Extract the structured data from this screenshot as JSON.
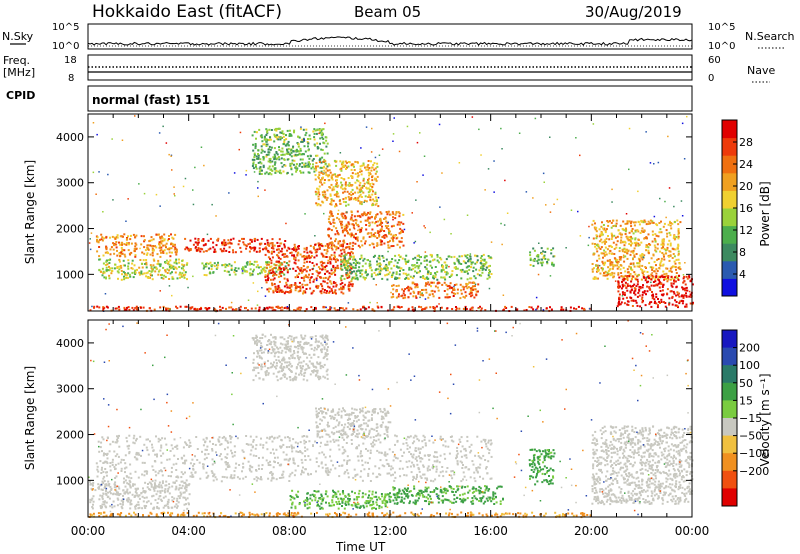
{
  "header": {
    "station": "Hokkaido East (fitACF)",
    "beam": "Beam 05",
    "date": "30/Aug/2019"
  },
  "top_panel": {
    "left_label": "N.Sky",
    "left_ticks": [
      "10^5",
      "10^0"
    ],
    "right_ticks": [
      "10^5",
      "10^0"
    ],
    "right_label": "N.Search"
  },
  "freq_panel": {
    "left_label_1": "Freq.",
    "left_label_2": "[MHz]",
    "left_ticks": [
      "18",
      "8"
    ],
    "right_ticks": [
      "60",
      "0"
    ],
    "right_label": "Nave"
  },
  "cpid_panel": {
    "left_label": "CPID",
    "mode_text": "normal (fast) 151"
  },
  "colors": {
    "power": [
      "#1010e0",
      "#2a5ab0",
      "#3c8a60",
      "#4cae4c",
      "#9ad23a",
      "#f0d030",
      "#f0a020",
      "#f07010",
      "#ee3a0a",
      "#e00000"
    ],
    "velocity": [
      "#1818c0",
      "#2a4ab0",
      "#2a7a68",
      "#3ca044",
      "#7acc40",
      "#c8c8c0",
      "#f0c040",
      "#f09020",
      "#f05010",
      "#e00000"
    ]
  },
  "chart_data": [
    {
      "type": "heatmap",
      "name": "power",
      "ylabel": "Slant Range [km]",
      "yticks": [
        1000,
        2000,
        3000,
        4000
      ],
      "ylim": [
        200,
        4500
      ],
      "xticks": [
        "00:00",
        "04:00",
        "08:00",
        "12:00",
        "16:00",
        "20:00",
        "00:00"
      ],
      "xlim_hours": [
        0,
        24
      ],
      "colorbar": {
        "label": "Power [dB]",
        "ticks": [
          4,
          8,
          12,
          16,
          20,
          24,
          28
        ],
        "tick_labels": [
          "4",
          "8",
          "12",
          "16",
          "20",
          "24",
          "28"
        ],
        "range": [
          0,
          32
        ]
      },
      "echo_regions": [
        {
          "t0": 0.3,
          "t1": 3.5,
          "r0": 1400,
          "r1": 1900,
          "value": 22
        },
        {
          "t0": 0.4,
          "t1": 4.0,
          "r0": 900,
          "r1": 1350,
          "value": 16
        },
        {
          "t0": 3.8,
          "t1": 7.8,
          "r0": 1500,
          "r1": 1800,
          "value": 28
        },
        {
          "t0": 4.5,
          "t1": 8.0,
          "r0": 1000,
          "r1": 1300,
          "value": 14
        },
        {
          "t0": 7.0,
          "t1": 10.5,
          "r0": 600,
          "r1": 1700,
          "value": 26
        },
        {
          "t0": 9.5,
          "t1": 12.5,
          "r0": 1600,
          "r1": 2400,
          "value": 24
        },
        {
          "t0": 10.0,
          "t1": 16.0,
          "r0": 900,
          "r1": 1450,
          "value": 13
        },
        {
          "t0": 12.0,
          "t1": 15.5,
          "r0": 500,
          "r1": 850,
          "value": 24
        },
        {
          "t0": 0.0,
          "t1": 20.0,
          "r0": 220,
          "r1": 320,
          "value": 28
        },
        {
          "t0": 20.0,
          "t1": 23.5,
          "r0": 900,
          "r1": 2200,
          "value": 20
        },
        {
          "t0": 21.0,
          "t1": 24.0,
          "r0": 300,
          "r1": 1000,
          "value": 30
        },
        {
          "t0": 6.5,
          "t1": 9.5,
          "r0": 3200,
          "r1": 4200,
          "value": 12
        },
        {
          "t0": 9.0,
          "t1": 11.5,
          "r0": 2500,
          "r1": 3500,
          "value": 20
        },
        {
          "t0": 17.5,
          "t1": 18.5,
          "r0": 1200,
          "r1": 1600,
          "value": 12
        }
      ]
    },
    {
      "type": "heatmap",
      "name": "velocity",
      "ylabel": "Slant Range [km]",
      "yticks": [
        1000,
        2000,
        3000,
        4000
      ],
      "ylim": [
        200,
        4500
      ],
      "xticks": [
        "00:00",
        "04:00",
        "08:00",
        "12:00",
        "16:00",
        "20:00",
        "00:00"
      ],
      "xlim_hours": [
        0,
        24
      ],
      "xlabel": "Time UT",
      "colorbar": {
        "label": "Velocity [m s⁻¹]",
        "tick_labels": [
          "200",
          "100",
          "50",
          "15",
          "−15",
          "−50",
          "−100",
          "−200"
        ]
      },
      "echo_regions": [
        {
          "t0": 0.3,
          "t1": 16.0,
          "r0": 1000,
          "r1": 2000,
          "value": 0
        },
        {
          "t0": 0.0,
          "t1": 4.0,
          "r0": 400,
          "r1": 1000,
          "value": 0
        },
        {
          "t0": 9.0,
          "t1": 12.0,
          "r0": 2000,
          "r1": 2600,
          "value": 0
        },
        {
          "t0": 12.0,
          "t1": 16.5,
          "r0": 500,
          "r1": 900,
          "value": 40
        },
        {
          "t0": 8.0,
          "t1": 12.0,
          "r0": 400,
          "r1": 800,
          "value": 30
        },
        {
          "t0": 0.0,
          "t1": 20.0,
          "r0": 220,
          "r1": 320,
          "value": -40
        },
        {
          "t0": 20.0,
          "t1": 24.0,
          "r0": 500,
          "r1": 2200,
          "value": 0
        },
        {
          "t0": 17.5,
          "t1": 18.5,
          "r0": 900,
          "r1": 1700,
          "value": 40
        },
        {
          "t0": 6.5,
          "t1": 9.5,
          "r0": 3200,
          "r1": 4200,
          "value": 0
        }
      ]
    }
  ]
}
